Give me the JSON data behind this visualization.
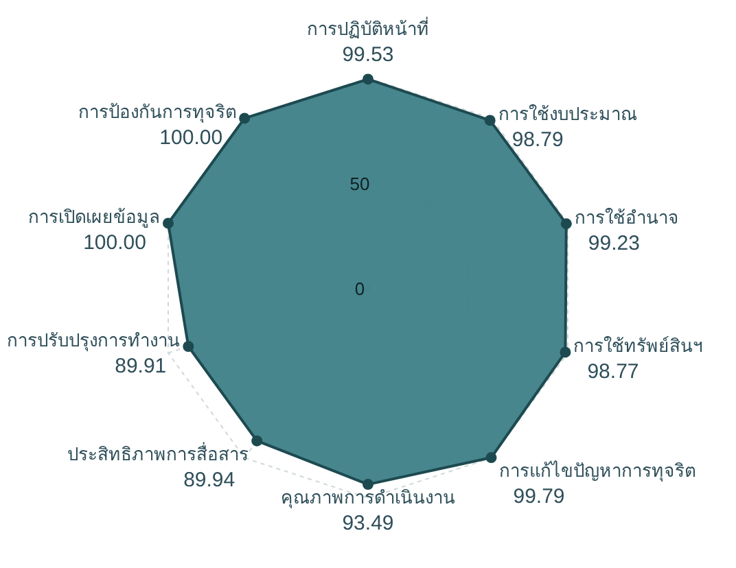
{
  "chart_data": {
    "type": "radar",
    "categories": [
      "การปฏิบัติหน้าที่",
      "การใช้งบประมาณ",
      "การใช้อำนาจ",
      "การใช้ทรัพย์สินฯ",
      "การแก้ไขปัญหาการทุจริต",
      "คุณภาพการดำเนินงาน",
      "ประสิทธิภาพการสื่อสาร",
      "การปรับปรุงการทำงาน",
      "การเปิดเผยข้อมูล",
      "การป้องกันการทุจริต"
    ],
    "series": [
      {
        "color": "#3e8088",
        "values": [
          99.53,
          98.79,
          99.23,
          98.77,
          99.79,
          93.49,
          89.94,
          89.91,
          100.0,
          100.0
        ],
        "value_labels": [
          "99.53",
          "98.79",
          "99.23",
          "98.77",
          "99.79",
          "93.49",
          "89.94",
          "89.91",
          "100.00",
          "100.00"
        ]
      }
    ],
    "ylim": [
      0,
      100
    ],
    "yticks": [
      0,
      50
    ],
    "grid": true,
    "marker": "circle"
  }
}
